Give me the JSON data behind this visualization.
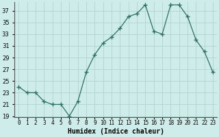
{
  "x": [
    0,
    1,
    2,
    3,
    4,
    5,
    6,
    7,
    8,
    9,
    10,
    11,
    12,
    13,
    14,
    15,
    16,
    17,
    18,
    19,
    20,
    21,
    22,
    23
  ],
  "y": [
    24,
    23,
    23,
    21.5,
    21,
    21,
    19,
    21.5,
    26.5,
    29.5,
    31.5,
    32.5,
    34,
    36,
    36.5,
    38,
    33.5,
    33,
    38,
    38,
    36,
    32,
    30,
    26.5
  ],
  "line_color": "#2d6e63",
  "marker": "+",
  "marker_size": 4,
  "bg_color": "#cdecea",
  "grid_color": "#b0d4d0",
  "xlabel": "Humidex (Indice chaleur)",
  "ylim_min": 19,
  "ylim_max": 38,
  "xlim_min": -0.5,
  "xlim_max": 23.5,
  "yticks": [
    19,
    21,
    23,
    25,
    27,
    29,
    31,
    33,
    35,
    37
  ],
  "xtick_labels": [
    "0",
    "1",
    "2",
    "3",
    "4",
    "5",
    "6",
    "7",
    "8",
    "9",
    "10",
    "11",
    "12",
    "13",
    "14",
    "15",
    "16",
    "17",
    "18",
    "19",
    "20",
    "21",
    "22",
    "23"
  ],
  "xlabel_fontsize": 7,
  "tick_fontsize": 5.5,
  "ytick_fontsize": 6
}
